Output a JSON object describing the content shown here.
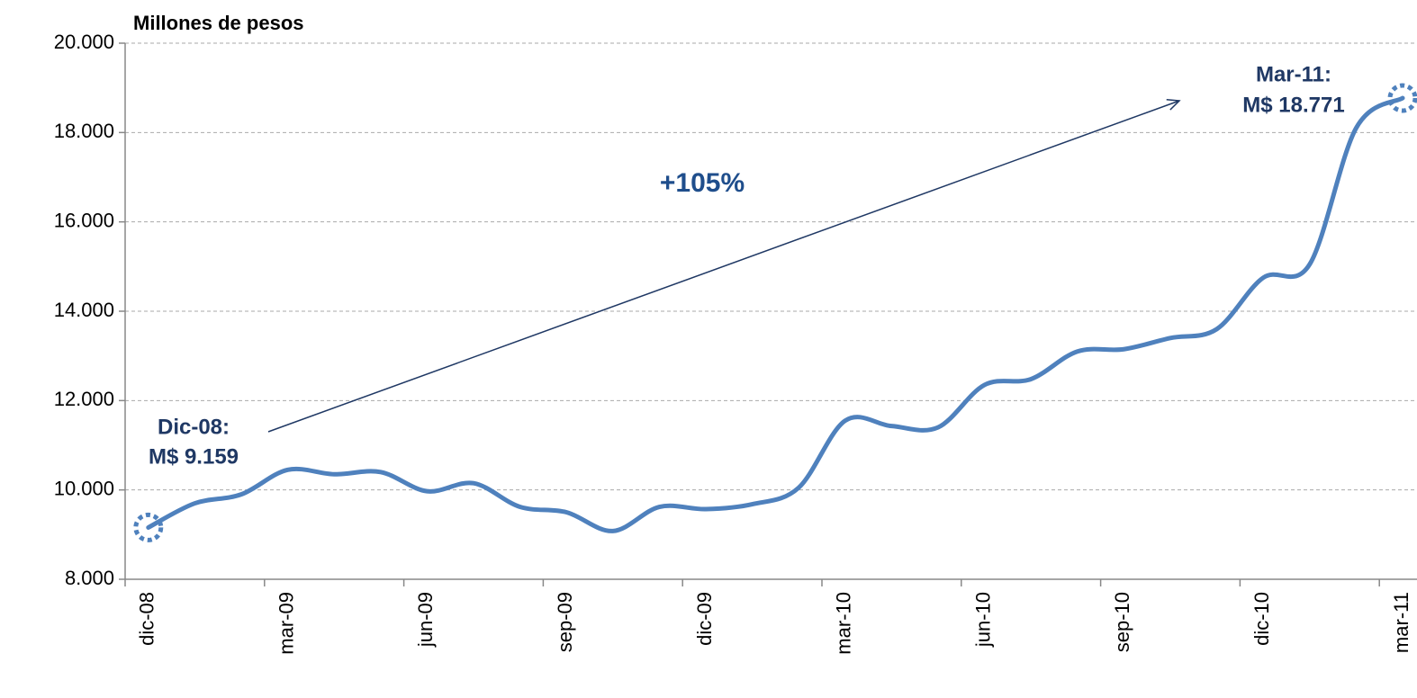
{
  "chart_data": {
    "type": "line",
    "y_axis_label": "Millones de pesos",
    "categories": [
      "dic-08",
      null,
      null,
      "mar-09",
      null,
      null,
      "jun-09",
      null,
      null,
      "sep-09",
      null,
      null,
      "dic-09",
      null,
      null,
      "mar-10",
      null,
      null,
      "jun-10",
      null,
      null,
      "sep-10",
      null,
      null,
      "dic-10",
      null,
      null,
      "mar-11"
    ],
    "series": [
      {
        "name": "Millones de pesos",
        "color": "#4f81bd",
        "values": [
          9159,
          9700,
          9900,
          10450,
          10350,
          10400,
          9970,
          10150,
          9620,
          9500,
          9080,
          9620,
          9570,
          9680,
          10050,
          11550,
          11430,
          11400,
          12350,
          12480,
          13100,
          13150,
          13400,
          13600,
          14750,
          15050,
          18100,
          18771
        ]
      }
    ],
    "ylim": [
      8000,
      20000
    ],
    "yticks": [
      {
        "value": 8000,
        "label": "8.000"
      },
      {
        "value": 10000,
        "label": "10.000"
      },
      {
        "value": 12000,
        "label": "12.000"
      },
      {
        "value": 14000,
        "label": "14.000"
      },
      {
        "value": 16000,
        "label": "16.000"
      },
      {
        "value": 18000,
        "label": "18.000"
      },
      {
        "value": 20000,
        "label": "20.000"
      }
    ],
    "grid": true,
    "annotations": [
      {
        "lines": [
          "Dic-08:",
          "M$ 9.159"
        ]
      },
      {
        "lines": [
          "Mar-11:",
          "M$ 18.771"
        ]
      },
      {
        "text": "+105%"
      }
    ]
  }
}
